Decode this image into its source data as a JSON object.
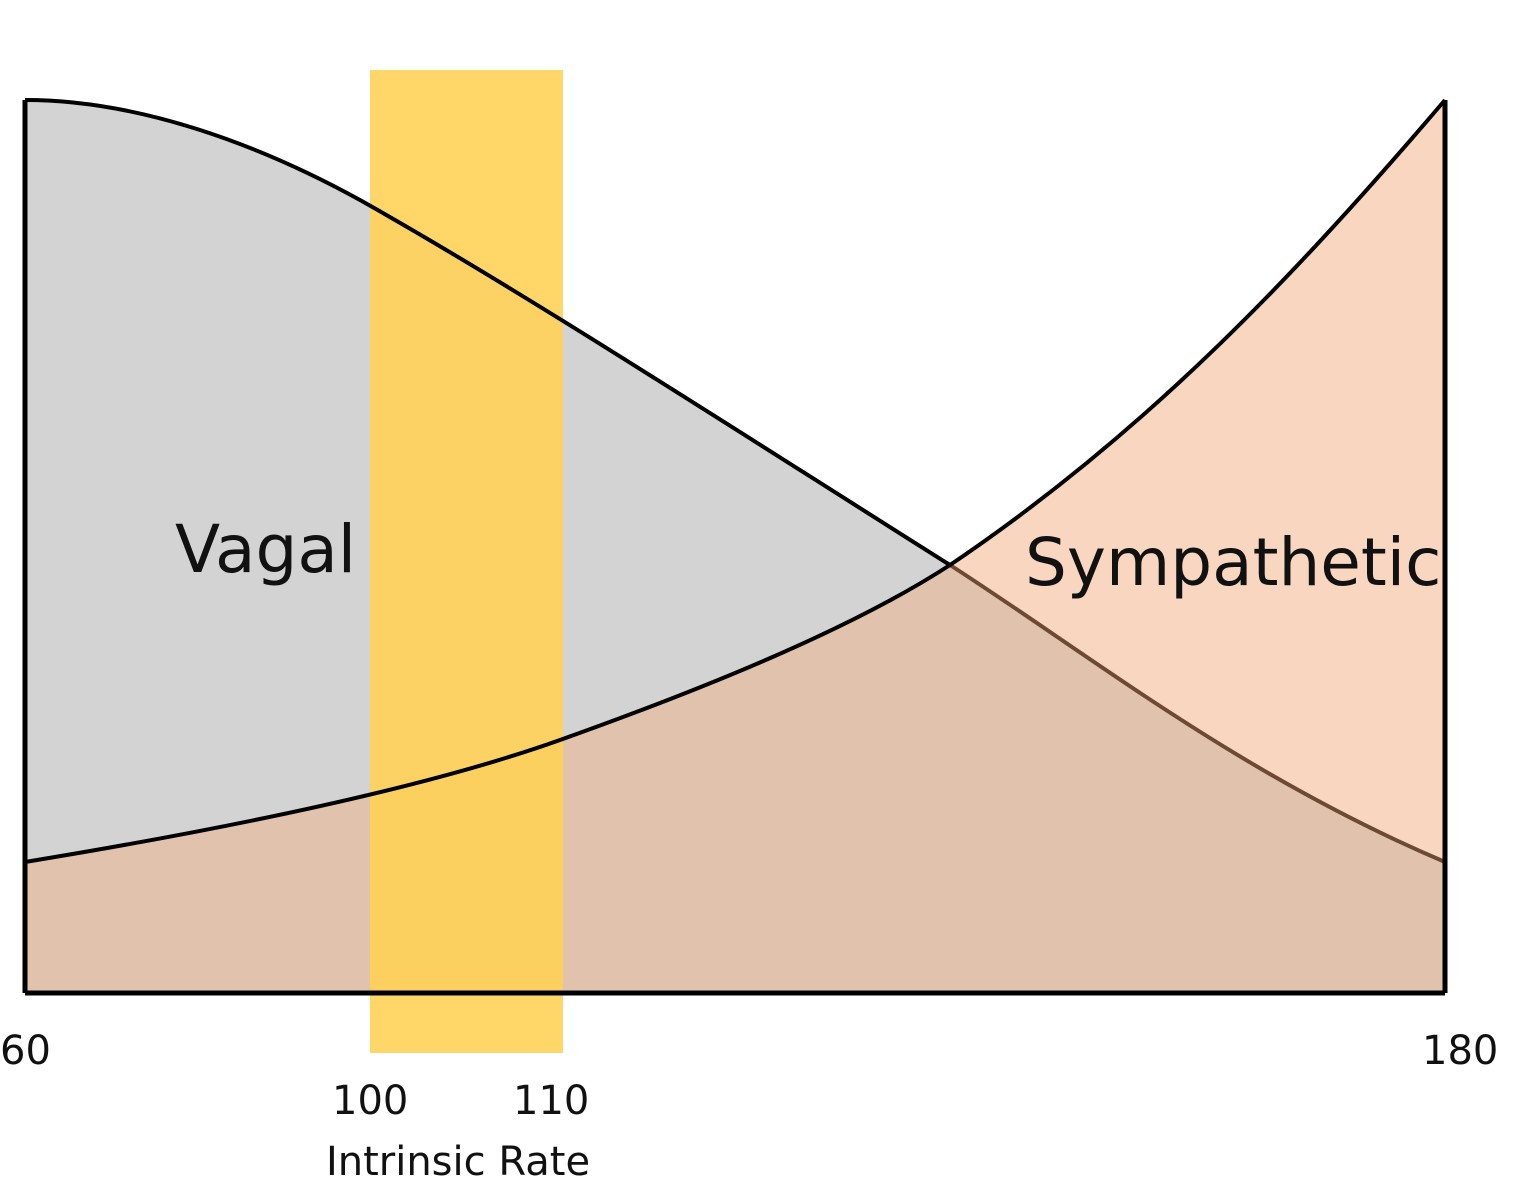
{
  "diagram": {
    "labels": {
      "vagal": "Vagal",
      "sympathetic": "Sympathetic",
      "axis_title": "Intrinsic Rate"
    },
    "ticks": {
      "min": "60",
      "band_start": "100",
      "band_end": "110",
      "max": "180"
    },
    "colors": {
      "vagal_fill": "#d3d3d3",
      "sympathetic_fill": "#f8d6bf",
      "overlap_fill": "#e1c2ac",
      "band_fill": "#ffd157",
      "outline": "#000000"
    }
  }
}
